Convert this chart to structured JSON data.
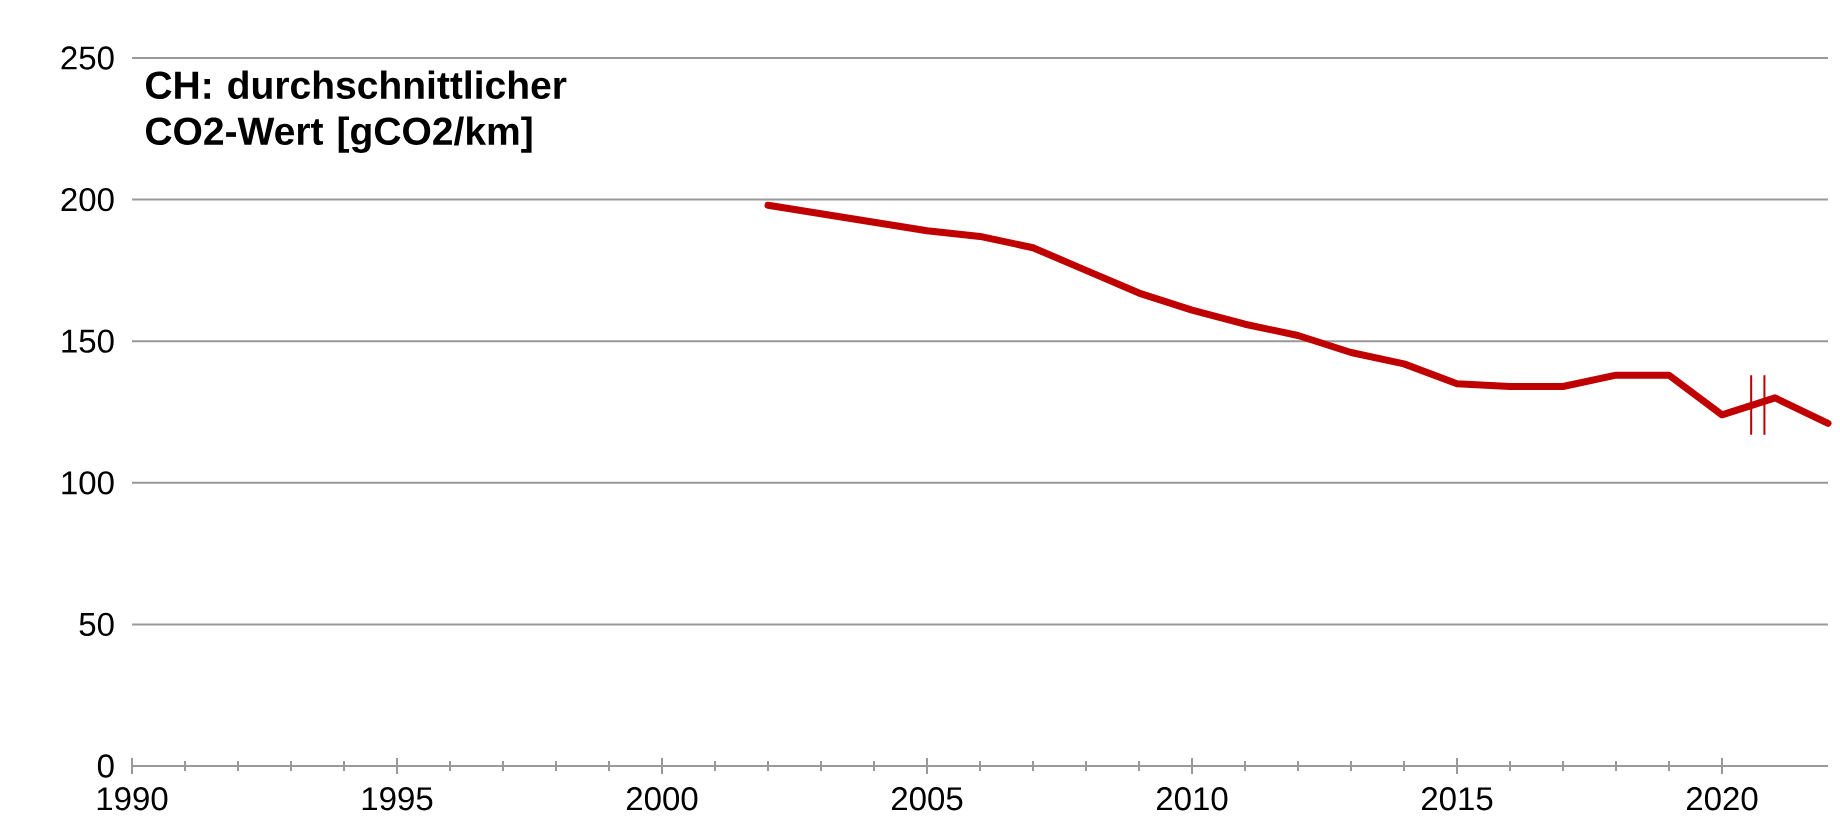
{
  "chart_data": {
    "type": "line",
    "title": "CH: durchschnittlicher CO2-Wert [gCO2/km]",
    "x": [
      2002,
      2003,
      2004,
      2005,
      2006,
      2007,
      2008,
      2009,
      2010,
      2011,
      2012,
      2013,
      2014,
      2015,
      2016,
      2017,
      2018,
      2019,
      2020,
      2021,
      2022
    ],
    "values": [
      198,
      195,
      192,
      189,
      187,
      183,
      175,
      167,
      161,
      156,
      152,
      146,
      142,
      135,
      134,
      134,
      138,
      138,
      124,
      130,
      121
    ],
    "color": "#c00000",
    "xlim": [
      1990,
      2022
    ],
    "xticks": [
      1990,
      1995,
      2000,
      2005,
      2010,
      2015,
      2020
    ],
    "ylim": [
      0,
      250
    ],
    "yticks": [
      0,
      50,
      100,
      150,
      200,
      250
    ],
    "grid": "y"
  }
}
